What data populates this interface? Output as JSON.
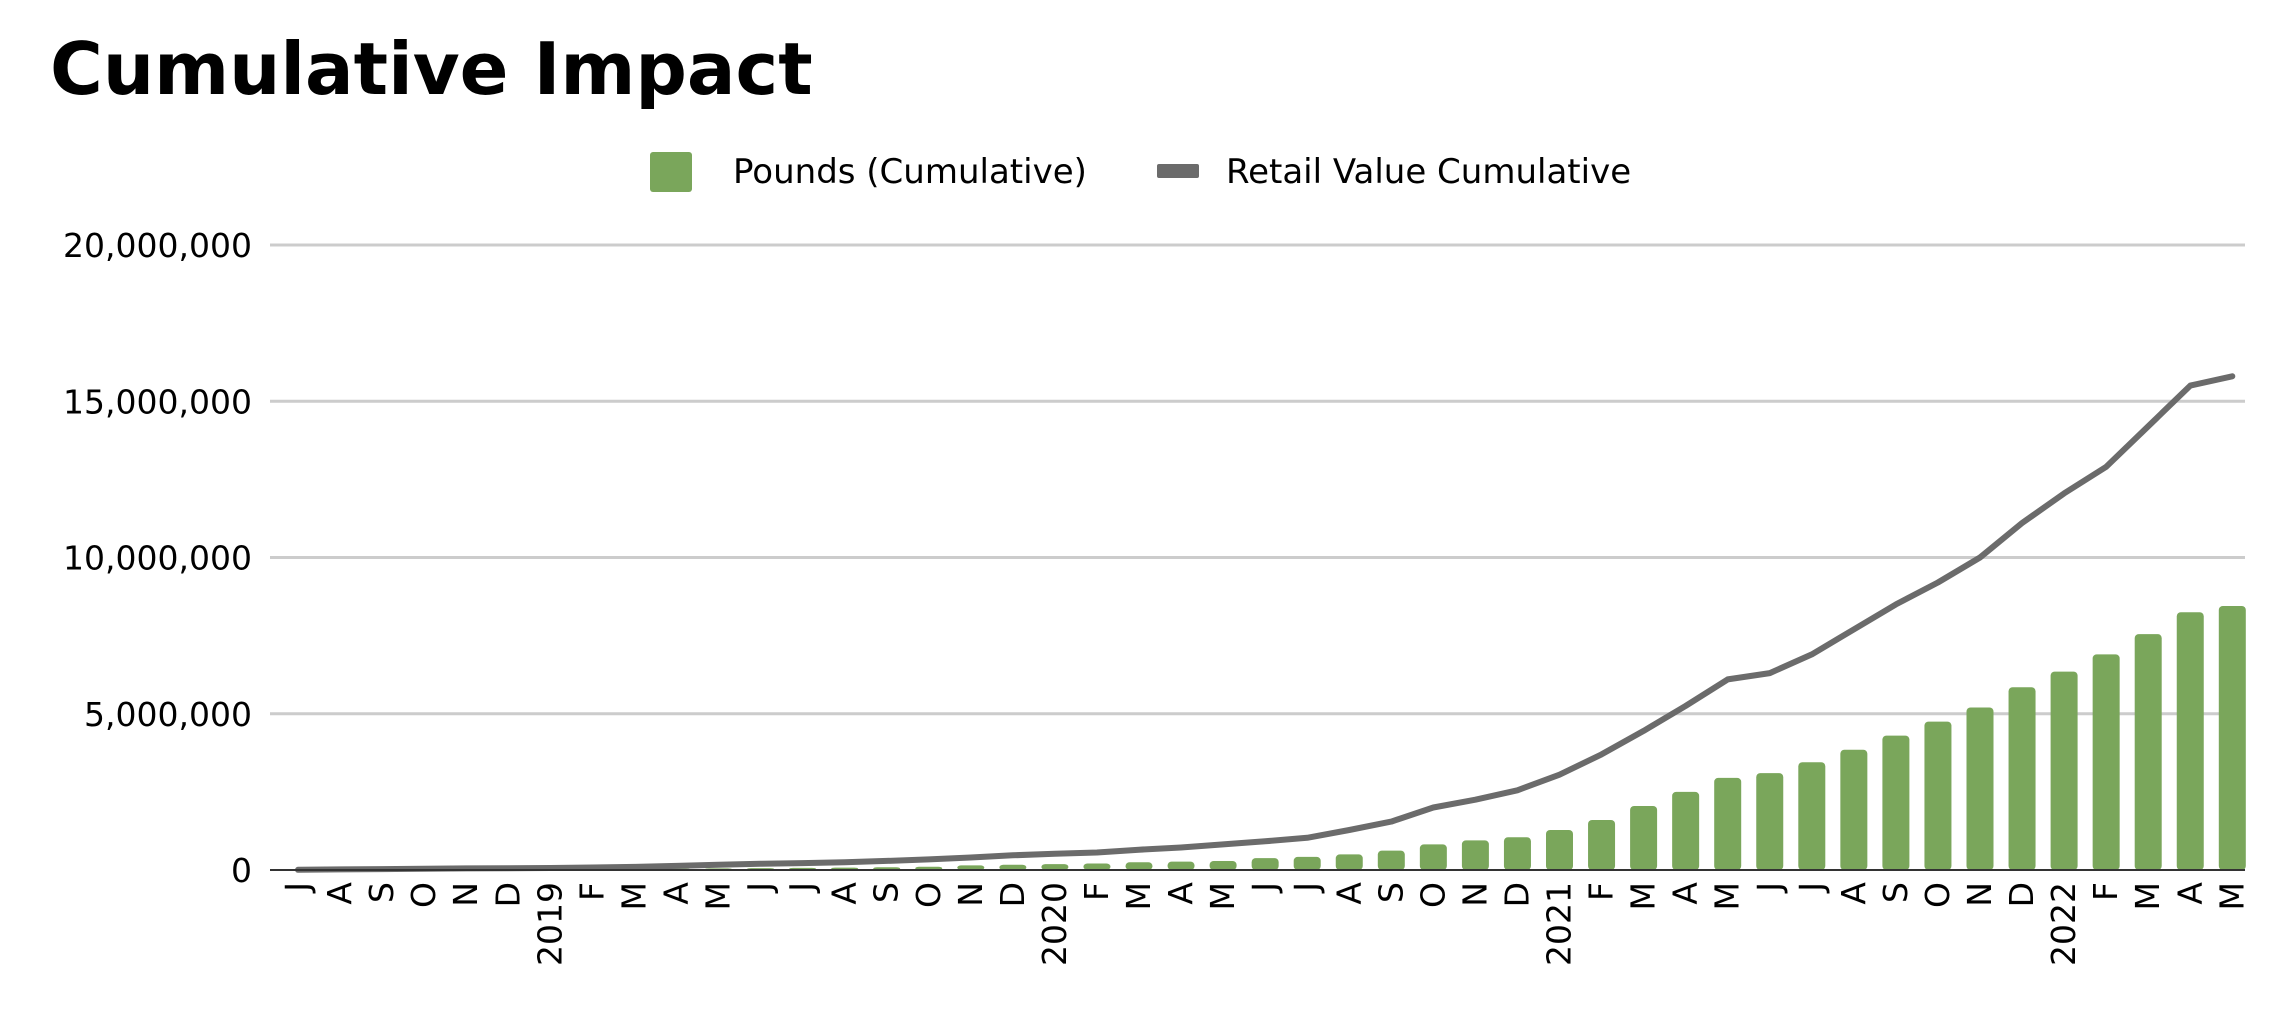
{
  "chart_data": {
    "type": "bar",
    "title": "Cumulative Impact",
    "xlabel": "",
    "ylabel": "",
    "ylim": [
      0,
      20000000
    ],
    "yticks": [
      "0",
      "5,000,000",
      "10,000,000",
      "15,000,000",
      "20,000,000"
    ],
    "ytick_values": [
      0,
      5000000,
      10000000,
      15000000,
      20000000
    ],
    "grid": true,
    "legend_position": "top-center",
    "categories": [
      "J",
      "A",
      "S",
      "O",
      "N",
      "D",
      "2019",
      "F",
      "M",
      "A",
      "M",
      "J",
      "J",
      "A",
      "S",
      "O",
      "N",
      "D",
      "2020",
      "F",
      "M",
      "A",
      "M",
      "J",
      "J",
      "A",
      "S",
      "O",
      "N",
      "D",
      "2021",
      "F",
      "M",
      "A",
      "M",
      "J",
      "J",
      "A",
      "S",
      "O",
      "N",
      "D",
      "2022",
      "F",
      "M",
      "A",
      "M"
    ],
    "series": [
      {
        "name": "Pounds (Cumulative)",
        "type": "bar",
        "color": "#7aa65b",
        "values": [
          2000,
          5000,
          9000,
          13000,
          17000,
          22000,
          27000,
          32000,
          38000,
          45000,
          52000,
          60000,
          68000,
          78000,
          90000,
          105000,
          150000,
          170000,
          190000,
          210000,
          250000,
          270000,
          290000,
          380000,
          420000,
          500000,
          620000,
          820000,
          950000,
          1050000,
          1280000,
          1600000,
          2050000,
          2500000,
          2950000,
          3100000,
          3450000,
          3850000,
          4300000,
          4750000,
          5200000,
          5850000,
          6350000,
          6900000,
          7550000,
          8250000,
          8450000
        ]
      },
      {
        "name": "Retail Value Cumulative",
        "type": "line",
        "color": "#6b6b6b",
        "values": [
          5000,
          20000,
          30000,
          40000,
          50000,
          55000,
          65000,
          80000,
          100000,
          130000,
          170000,
          200000,
          220000,
          250000,
          290000,
          340000,
          400000,
          470000,
          520000,
          560000,
          650000,
          720000,
          820000,
          920000,
          1030000,
          1280000,
          1550000,
          2000000,
          2250000,
          2550000,
          3050000,
          3700000,
          4450000,
          5250000,
          6100000,
          6300000,
          6900000,
          7700000,
          8500000,
          9200000,
          10000000,
          11100000,
          12050000,
          12900000,
          14200000,
          15500000,
          15800000
        ]
      }
    ]
  }
}
